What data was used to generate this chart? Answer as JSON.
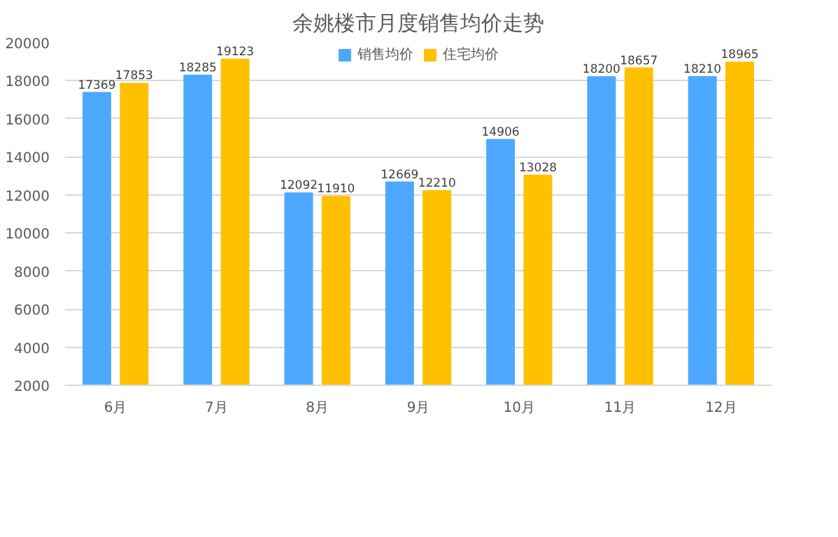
{
  "chart_data": {
    "type": "bar",
    "title": "余姚楼市月度销售均价走势",
    "categories": [
      "6月",
      "7月",
      "8月",
      "9月",
      "10月",
      "11月",
      "12月"
    ],
    "series": [
      {
        "name": "销售均价",
        "color": "#4da9ff",
        "values": [
          17369,
          18285,
          12092,
          12669,
          14906,
          18200,
          18210
        ]
      },
      {
        "name": "住宅均价",
        "color": "#ffc000",
        "values": [
          17853,
          19123,
          11910,
          12210,
          13028,
          18657,
          18965
        ]
      }
    ],
    "ylim": [
      2000,
      20000
    ],
    "yticks": [
      2000,
      4000,
      6000,
      8000,
      10000,
      12000,
      14000,
      16000,
      18000,
      20000
    ],
    "grid": "y",
    "legend": "top",
    "data_labels": true
  }
}
